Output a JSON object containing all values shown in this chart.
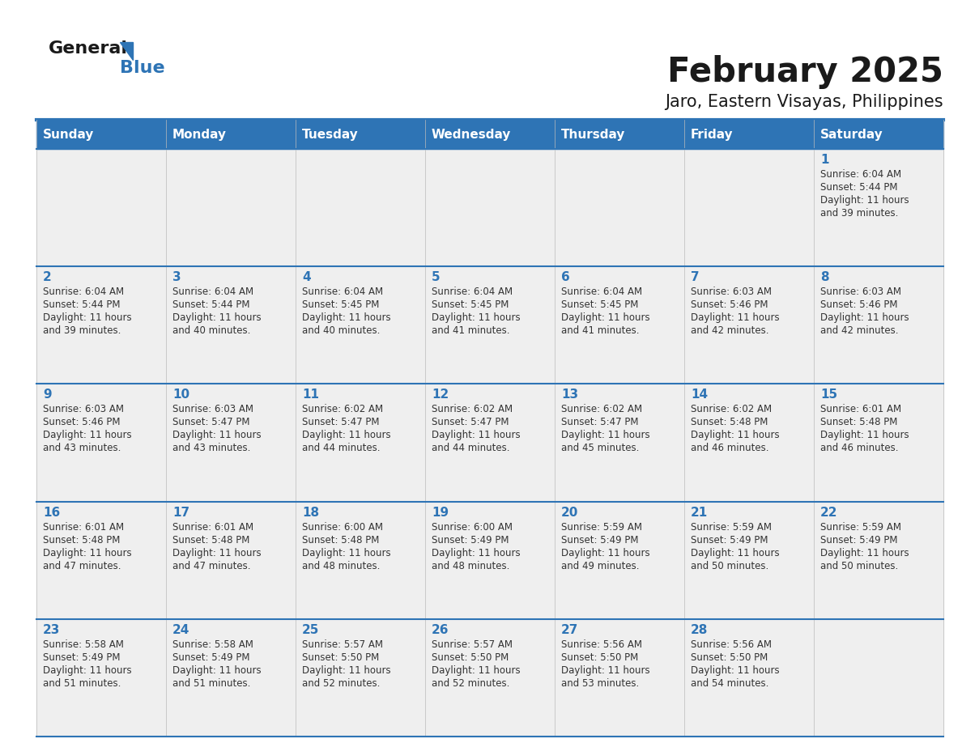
{
  "title": "February 2025",
  "subtitle": "Jaro, Eastern Visayas, Philippines",
  "header_bg": "#2E74B5",
  "header_text_color": "#FFFFFF",
  "cell_bg_light": "#EFEFEF",
  "cell_bg_white": "#FFFFFF",
  "grid_line_color": "#2E74B5",
  "day_number_color": "#2E74B5",
  "text_color": "#333333",
  "days_of_week": [
    "Sunday",
    "Monday",
    "Tuesday",
    "Wednesday",
    "Thursday",
    "Friday",
    "Saturday"
  ],
  "weeks": [
    [
      {
        "day": null,
        "sunrise": null,
        "sunset": null,
        "daylight_hours": null,
        "daylight_mins": null
      },
      {
        "day": null,
        "sunrise": null,
        "sunset": null,
        "daylight_hours": null,
        "daylight_mins": null
      },
      {
        "day": null,
        "sunrise": null,
        "sunset": null,
        "daylight_hours": null,
        "daylight_mins": null
      },
      {
        "day": null,
        "sunrise": null,
        "sunset": null,
        "daylight_hours": null,
        "daylight_mins": null
      },
      {
        "day": null,
        "sunrise": null,
        "sunset": null,
        "daylight_hours": null,
        "daylight_mins": null
      },
      {
        "day": null,
        "sunrise": null,
        "sunset": null,
        "daylight_hours": null,
        "daylight_mins": null
      },
      {
        "day": 1,
        "sunrise": "6:04 AM",
        "sunset": "5:44 PM",
        "daylight_hours": 11,
        "daylight_mins": 39
      }
    ],
    [
      {
        "day": 2,
        "sunrise": "6:04 AM",
        "sunset": "5:44 PM",
        "daylight_hours": 11,
        "daylight_mins": 39
      },
      {
        "day": 3,
        "sunrise": "6:04 AM",
        "sunset": "5:44 PM",
        "daylight_hours": 11,
        "daylight_mins": 40
      },
      {
        "day": 4,
        "sunrise": "6:04 AM",
        "sunset": "5:45 PM",
        "daylight_hours": 11,
        "daylight_mins": 40
      },
      {
        "day": 5,
        "sunrise": "6:04 AM",
        "sunset": "5:45 PM",
        "daylight_hours": 11,
        "daylight_mins": 41
      },
      {
        "day": 6,
        "sunrise": "6:04 AM",
        "sunset": "5:45 PM",
        "daylight_hours": 11,
        "daylight_mins": 41
      },
      {
        "day": 7,
        "sunrise": "6:03 AM",
        "sunset": "5:46 PM",
        "daylight_hours": 11,
        "daylight_mins": 42
      },
      {
        "day": 8,
        "sunrise": "6:03 AM",
        "sunset": "5:46 PM",
        "daylight_hours": 11,
        "daylight_mins": 42
      }
    ],
    [
      {
        "day": 9,
        "sunrise": "6:03 AM",
        "sunset": "5:46 PM",
        "daylight_hours": 11,
        "daylight_mins": 43
      },
      {
        "day": 10,
        "sunrise": "6:03 AM",
        "sunset": "5:47 PM",
        "daylight_hours": 11,
        "daylight_mins": 43
      },
      {
        "day": 11,
        "sunrise": "6:02 AM",
        "sunset": "5:47 PM",
        "daylight_hours": 11,
        "daylight_mins": 44
      },
      {
        "day": 12,
        "sunrise": "6:02 AM",
        "sunset": "5:47 PM",
        "daylight_hours": 11,
        "daylight_mins": 44
      },
      {
        "day": 13,
        "sunrise": "6:02 AM",
        "sunset": "5:47 PM",
        "daylight_hours": 11,
        "daylight_mins": 45
      },
      {
        "day": 14,
        "sunrise": "6:02 AM",
        "sunset": "5:48 PM",
        "daylight_hours": 11,
        "daylight_mins": 46
      },
      {
        "day": 15,
        "sunrise": "6:01 AM",
        "sunset": "5:48 PM",
        "daylight_hours": 11,
        "daylight_mins": 46
      }
    ],
    [
      {
        "day": 16,
        "sunrise": "6:01 AM",
        "sunset": "5:48 PM",
        "daylight_hours": 11,
        "daylight_mins": 47
      },
      {
        "day": 17,
        "sunrise": "6:01 AM",
        "sunset": "5:48 PM",
        "daylight_hours": 11,
        "daylight_mins": 47
      },
      {
        "day": 18,
        "sunrise": "6:00 AM",
        "sunset": "5:48 PM",
        "daylight_hours": 11,
        "daylight_mins": 48
      },
      {
        "day": 19,
        "sunrise": "6:00 AM",
        "sunset": "5:49 PM",
        "daylight_hours": 11,
        "daylight_mins": 48
      },
      {
        "day": 20,
        "sunrise": "5:59 AM",
        "sunset": "5:49 PM",
        "daylight_hours": 11,
        "daylight_mins": 49
      },
      {
        "day": 21,
        "sunrise": "5:59 AM",
        "sunset": "5:49 PM",
        "daylight_hours": 11,
        "daylight_mins": 50
      },
      {
        "day": 22,
        "sunrise": "5:59 AM",
        "sunset": "5:49 PM",
        "daylight_hours": 11,
        "daylight_mins": 50
      }
    ],
    [
      {
        "day": 23,
        "sunrise": "5:58 AM",
        "sunset": "5:49 PM",
        "daylight_hours": 11,
        "daylight_mins": 51
      },
      {
        "day": 24,
        "sunrise": "5:58 AM",
        "sunset": "5:49 PM",
        "daylight_hours": 11,
        "daylight_mins": 51
      },
      {
        "day": 25,
        "sunrise": "5:57 AM",
        "sunset": "5:50 PM",
        "daylight_hours": 11,
        "daylight_mins": 52
      },
      {
        "day": 26,
        "sunrise": "5:57 AM",
        "sunset": "5:50 PM",
        "daylight_hours": 11,
        "daylight_mins": 52
      },
      {
        "day": 27,
        "sunrise": "5:56 AM",
        "sunset": "5:50 PM",
        "daylight_hours": 11,
        "daylight_mins": 53
      },
      {
        "day": 28,
        "sunrise": "5:56 AM",
        "sunset": "5:50 PM",
        "daylight_hours": 11,
        "daylight_mins": 54
      },
      {
        "day": null,
        "sunrise": null,
        "sunset": null,
        "daylight_hours": null,
        "daylight_mins": null
      }
    ]
  ],
  "logo_text_general": "General",
  "logo_text_blue": "Blue",
  "logo_color_general": "#1a1a1a",
  "logo_color_blue": "#2E74B5",
  "logo_triangle_color": "#2E74B5",
  "title_fontsize": 30,
  "subtitle_fontsize": 15,
  "header_fontsize": 11,
  "day_num_fontsize": 11,
  "cell_text_fontsize": 8.5
}
